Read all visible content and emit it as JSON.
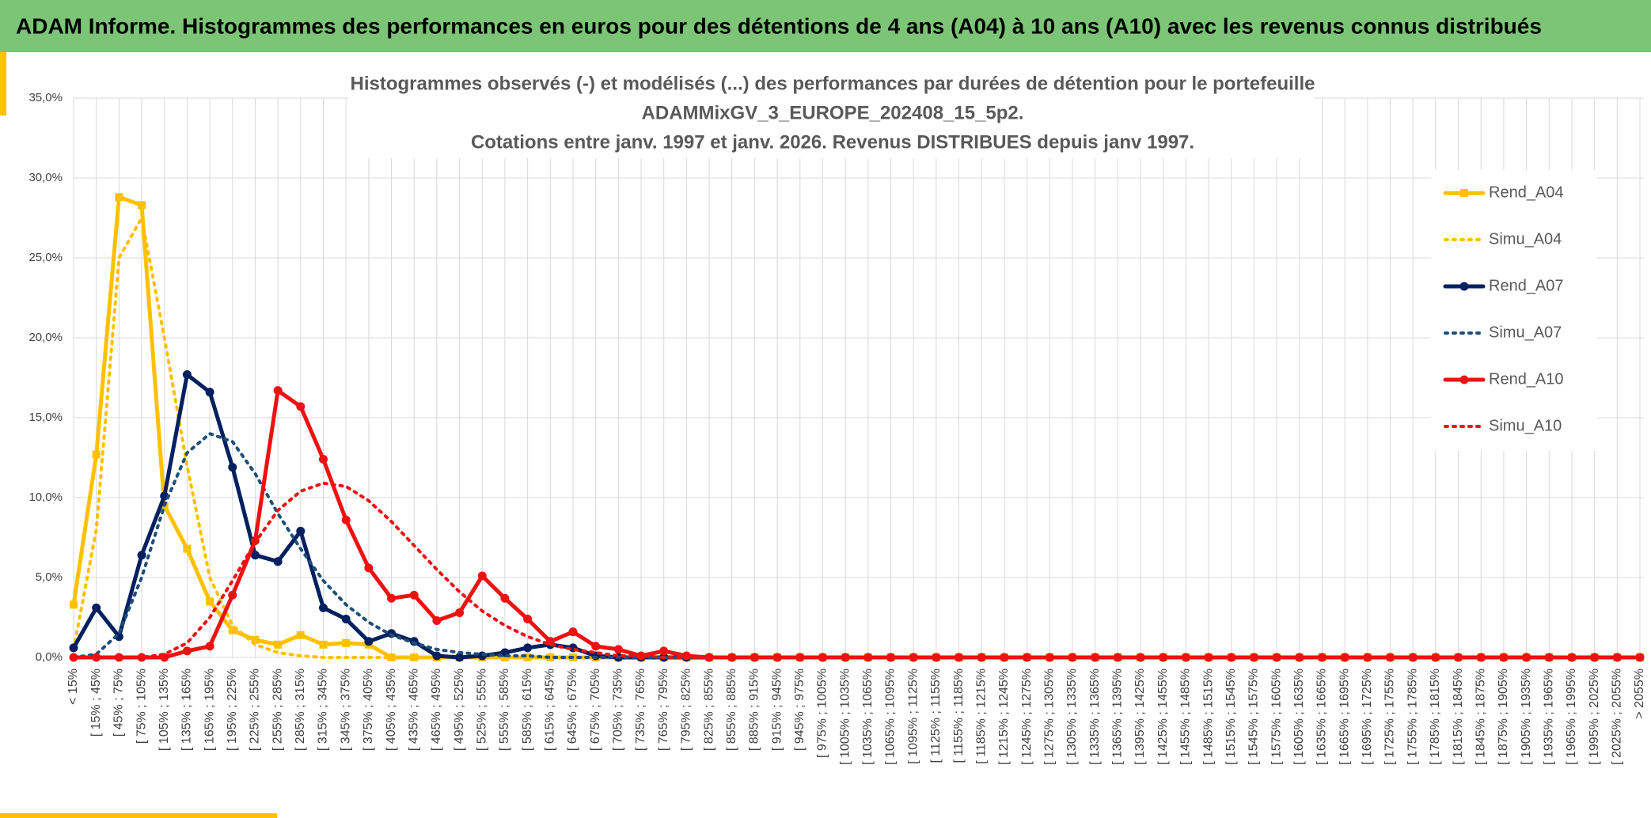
{
  "header": {
    "title": "ADAM Informe. Histogrammes des performances en euros pour des détentions de 4 ans (A04) à 10 ans (A10) avec les revenus connus distribués"
  },
  "chart_data": {
    "type": "line",
    "title": [
      "Histogrammes observés (-) et modélisés (...) des performances par durées de détention pour le portefeuille",
      "ADAMMixGV_3_EUROPE_202408_15_5p2.",
      "Cotations entre janv. 1997 et janv. 2026. Revenus DISTRIBUES depuis janv 1997."
    ],
    "categories": [
      "< 15%",
      "[ 15% ; 45%",
      "[ 45% ; 75%",
      "[ 75% ; 105%",
      "[ 105% ; 135%",
      "[ 135% ; 165%",
      "[ 165% ; 195%",
      "[ 195% ; 225%",
      "[ 225% ; 255%",
      "[ 255% ; 285%",
      "[ 285% ; 315%",
      "[ 315% ; 345%",
      "[ 345% ; 375%",
      "[ 375% ; 405%",
      "[ 405% ; 435%",
      "[ 435% ; 465%",
      "[ 465% ; 495%",
      "[ 495% ; 525%",
      "[ 525% ; 555%",
      "[ 555% ; 585%",
      "[ 585% ; 615%",
      "[ 615% ; 645%",
      "[ 645% ; 675%",
      "[ 675% ; 705%",
      "[ 705% ; 735%",
      "[ 735% ; 765%",
      "[ 765% ; 795%",
      "[ 795% ; 825%",
      "[ 825% ; 855%",
      "[ 855% ; 885%",
      "[ 885% ; 915%",
      "[ 915% ; 945%",
      "[ 945% ; 975%",
      "[ 975% ; 1005%",
      "[ 1005% ; 1035%",
      "[ 1035% ; 1065%",
      "[ 1065% ; 1095%",
      "[ 1095% ; 1125%",
      "[ 1125% ; 1155%",
      "[ 1155% ; 1185%",
      "[ 1185% ; 1215%",
      "[ 1215% ; 1245%",
      "[ 1245% ; 1275%",
      "[ 1275% ; 1305%",
      "[ 1305% ; 1335%",
      "[ 1335% ; 1365%",
      "[ 1365% ; 1395%",
      "[ 1395% ; 1425%",
      "[ 1425% ; 1455%",
      "[ 1455% ; 1485%",
      "[ 1485% ; 1515%",
      "[ 1515% ; 1545%",
      "[ 1545% ; 1575%",
      "[ 1575% ; 1605%",
      "[ 1605% ; 1635%",
      "[ 1635% ; 1665%",
      "[ 1665% ; 1695%",
      "[ 1695% ; 1725%",
      "[ 1725% ; 1755%",
      "[ 1755% ; 1785%",
      "[ 1785% ; 1815%",
      "[ 1815% ; 1845%",
      "[ 1845% ; 1875%",
      "[ 1875% ; 1905%",
      "[ 1905% ; 1935%",
      "[ 1935% ; 1965%",
      "[ 1965% ; 1995%",
      "[ 1995% ; 2025%",
      "[ 2025% ; 2055%",
      "> 2055%"
    ],
    "series": [
      {
        "name": "Rend_A04",
        "color": "#ffc000",
        "line_style": "solid",
        "marker": "square",
        "values": [
          3.3,
          12.7,
          28.8,
          28.3,
          9.5,
          6.8,
          3.5,
          1.7,
          1.1,
          0.8,
          1.4,
          0.8,
          0.9,
          0.8,
          0,
          0,
          0,
          0,
          0,
          0,
          0,
          0,
          0,
          0,
          0,
          0,
          0,
          0,
          0,
          0,
          0,
          0,
          0,
          0,
          0,
          0,
          0,
          0,
          0,
          0,
          0,
          0,
          0,
          0,
          0,
          0,
          0,
          0,
          0,
          0,
          0,
          0,
          0,
          0,
          0,
          0,
          0,
          0,
          0,
          0,
          0,
          0,
          0,
          0,
          0,
          0,
          0,
          0,
          0,
          0
        ]
      },
      {
        "name": "Simu_A04",
        "color": "#ffc000",
        "line_style": "dotted",
        "marker": "none",
        "values": [
          0.5,
          8,
          25,
          27.5,
          20,
          12,
          5,
          2,
          0.8,
          0.3,
          0.1,
          0,
          0,
          0,
          0,
          0,
          0,
          0,
          0,
          0,
          0,
          0,
          0,
          0,
          0,
          0,
          0,
          0,
          0,
          0,
          0,
          0,
          0,
          0,
          0,
          0,
          0,
          0,
          0,
          0,
          0,
          0,
          0,
          0,
          0,
          0,
          0,
          0,
          0,
          0,
          0,
          0,
          0,
          0,
          0,
          0,
          0,
          0,
          0,
          0,
          0,
          0,
          0,
          0,
          0,
          0,
          0,
          0,
          0,
          0
        ]
      },
      {
        "name": "Rend_A07",
        "color": "#002060",
        "line_style": "solid",
        "marker": "circle",
        "values": [
          0.6,
          3.1,
          1.3,
          6.4,
          10.1,
          17.7,
          16.6,
          11.9,
          6.4,
          6.0,
          7.9,
          3.1,
          2.4,
          1.0,
          1.5,
          1.0,
          0.1,
          0,
          0.1,
          0.3,
          0.6,
          0.8,
          0.6,
          0.1,
          0,
          0,
          0,
          0,
          0,
          0,
          0,
          0,
          0,
          0,
          0,
          0,
          0,
          0,
          0,
          0,
          0,
          0,
          0,
          0,
          0,
          0,
          0,
          0,
          0,
          0,
          0,
          0,
          0,
          0,
          0,
          0,
          0,
          0,
          0,
          0,
          0,
          0,
          0,
          0,
          0,
          0,
          0,
          0,
          0,
          0
        ]
      },
      {
        "name": "Simu_A07",
        "color": "#1f4e79",
        "line_style": "dotted",
        "marker": "none",
        "values": [
          0,
          0.2,
          1.5,
          5,
          9.5,
          12.8,
          14,
          13.5,
          11.5,
          9,
          6.8,
          4.8,
          3.3,
          2.2,
          1.4,
          0.9,
          0.5,
          0.3,
          0.2,
          0.1,
          0.1,
          0,
          0,
          0,
          0,
          0,
          0,
          0,
          0,
          0,
          0,
          0,
          0,
          0,
          0,
          0,
          0,
          0,
          0,
          0,
          0,
          0,
          0,
          0,
          0,
          0,
          0,
          0,
          0,
          0,
          0,
          0,
          0,
          0,
          0,
          0,
          0,
          0,
          0,
          0,
          0,
          0,
          0,
          0,
          0,
          0,
          0,
          0,
          0,
          0
        ]
      },
      {
        "name": "Rend_A10",
        "color": "#ee1111",
        "line_style": "solid",
        "marker": "circle",
        "values": [
          0,
          0,
          0,
          0,
          0,
          0.4,
          0.7,
          3.9,
          7.3,
          16.7,
          15.7,
          12.4,
          8.6,
          5.6,
          3.7,
          3.9,
          2.3,
          2.8,
          5.1,
          3.7,
          2.4,
          1.0,
          1.6,
          0.7,
          0.5,
          0.1,
          0.4,
          0.1,
          0,
          0,
          0,
          0,
          0,
          0,
          0,
          0,
          0,
          0,
          0,
          0,
          0,
          0,
          0,
          0,
          0,
          0,
          0,
          0,
          0,
          0,
          0,
          0,
          0,
          0,
          0,
          0,
          0,
          0,
          0,
          0,
          0,
          0,
          0,
          0,
          0,
          0,
          0,
          0,
          0,
          0
        ]
      },
      {
        "name": "Simu_A10",
        "color": "#ee1111",
        "line_style": "dotted",
        "marker": "none",
        "values": [
          0,
          0,
          0,
          0,
          0.2,
          0.9,
          2.5,
          4.8,
          7.2,
          9.2,
          10.4,
          10.9,
          10.7,
          9.8,
          8.5,
          7.0,
          5.5,
          4.1,
          2.9,
          2.0,
          1.3,
          0.8,
          0.5,
          0.3,
          0.1,
          0.1,
          0,
          0,
          0,
          0,
          0,
          0,
          0,
          0,
          0,
          0,
          0,
          0,
          0,
          0,
          0,
          0,
          0,
          0,
          0,
          0,
          0,
          0,
          0,
          0,
          0,
          0,
          0,
          0,
          0,
          0,
          0,
          0,
          0,
          0,
          0,
          0,
          0,
          0,
          0,
          0,
          0,
          0,
          0,
          0
        ]
      }
    ],
    "ylim": [
      0,
      35
    ],
    "yticks": [
      {
        "value": 0,
        "label": "0,0%"
      },
      {
        "value": 5,
        "label": "5,0%"
      },
      {
        "value": 10,
        "label": "10,0%"
      },
      {
        "value": 15,
        "label": "15,0%"
      },
      {
        "value": 20,
        "label": "20,0%"
      },
      {
        "value": 25,
        "label": "25,0%"
      },
      {
        "value": 30,
        "label": "30,0%"
      },
      {
        "value": 35,
        "label": "35,0%"
      }
    ],
    "grid": true,
    "legend": "right"
  }
}
